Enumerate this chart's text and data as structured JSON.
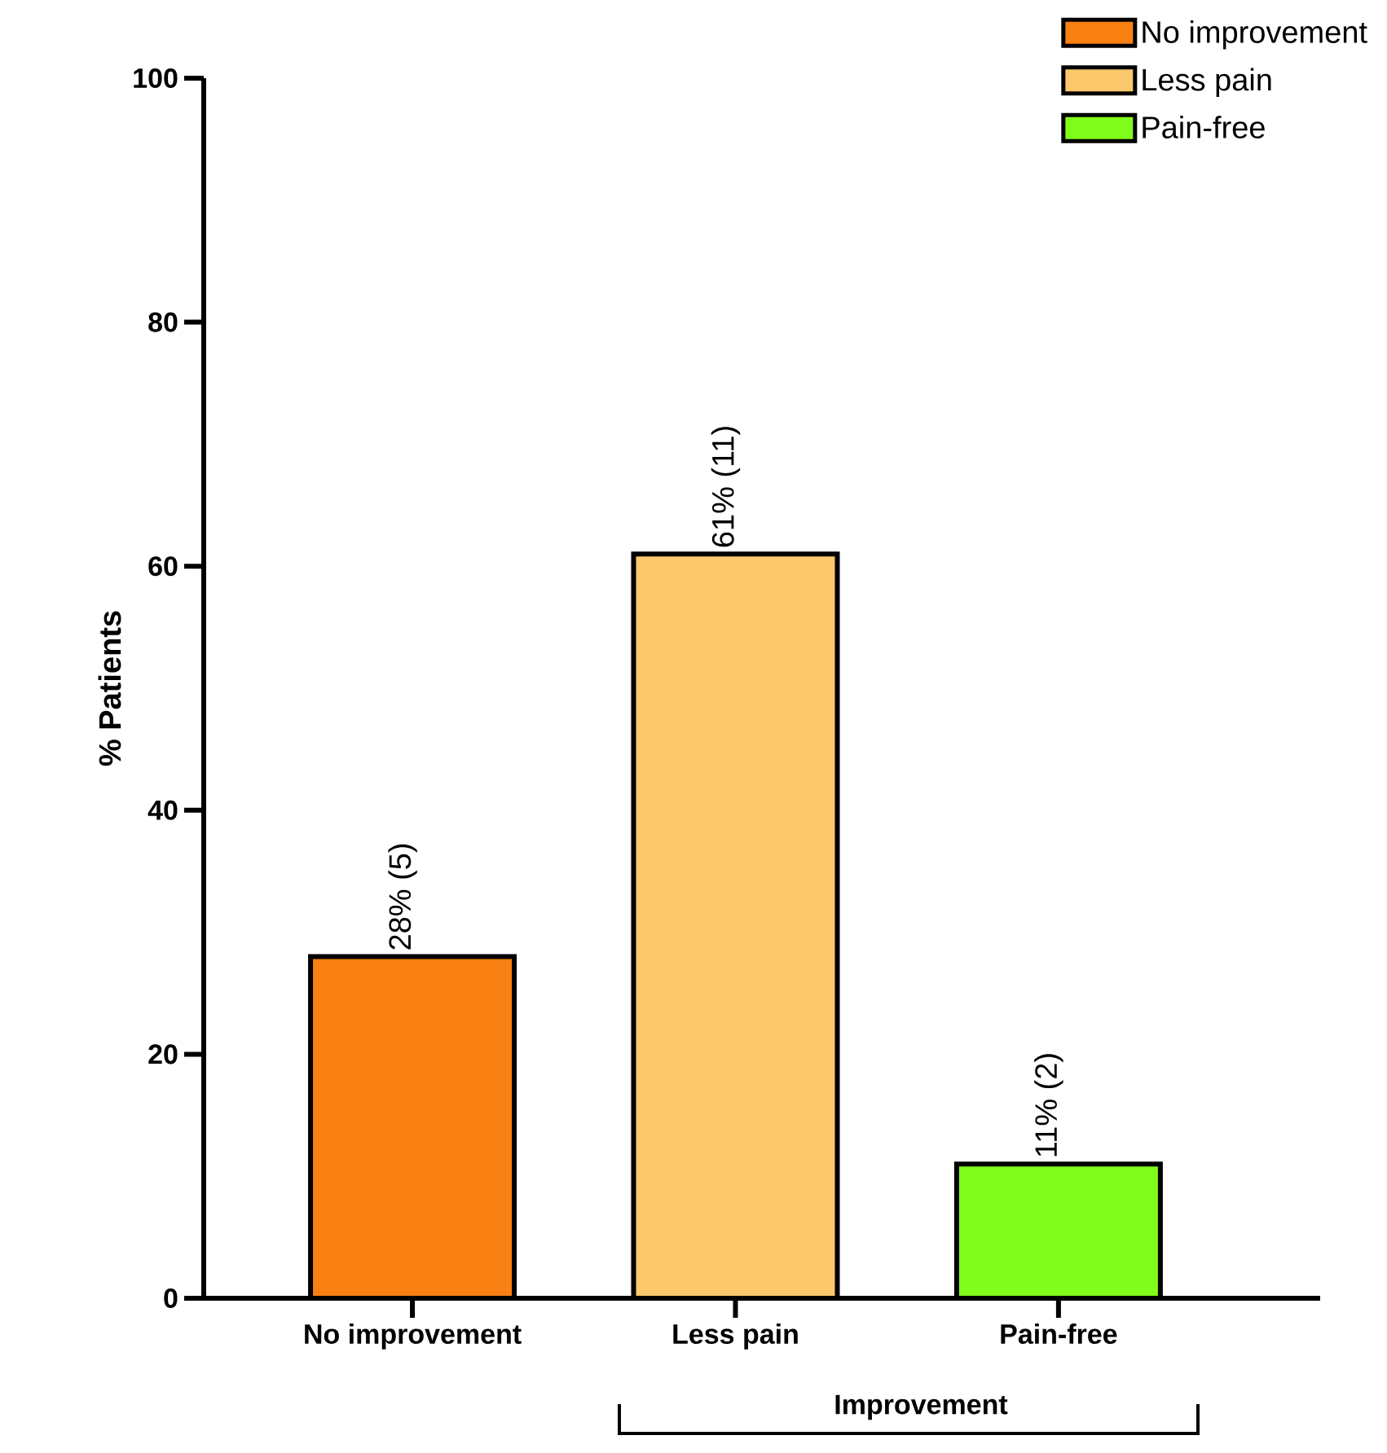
{
  "chart_data": {
    "type": "bar",
    "ylabel": "% Patients",
    "categories": [
      "No improvement",
      "Less pain",
      "Pain-free"
    ],
    "series": [
      {
        "name": "No improvement",
        "color": "#f98012",
        "values": [
          28,
          null,
          null
        ],
        "value_labels": [
          "28% (5)",
          null,
          null
        ]
      },
      {
        "name": "Less pain",
        "color": "#fbc96b",
        "values": [
          null,
          61,
          null
        ],
        "value_labels": [
          null,
          "61% (11)",
          null
        ]
      },
      {
        "name": "Pain-free",
        "color": "#80fc1a",
        "values": [
          null,
          null,
          11
        ],
        "value_labels": [
          null,
          null,
          "11% (2)"
        ]
      }
    ],
    "ylim": [
      0,
      100
    ],
    "yticks": [
      0,
      20,
      40,
      60,
      80,
      100
    ],
    "legend": "top right",
    "grid": false,
    "annotations": [
      "Improvement"
    ]
  }
}
